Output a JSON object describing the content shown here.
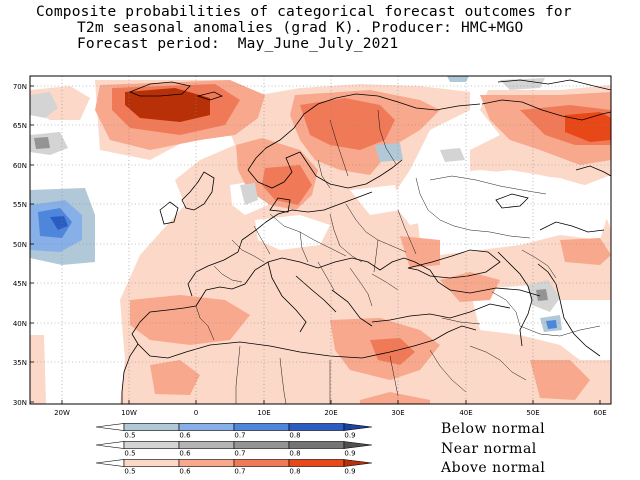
{
  "title": {
    "line1": "Composite probabilities of categorical forecast outcomes for",
    "line2": "T2m seasonal anomalies (grad K). Producer: HMC+MGO",
    "line3": "Forecast period:  May_June_July_2021"
  },
  "axes": {
    "lat_labels": [
      "70N",
      "65N",
      "60N",
      "55N",
      "50N",
      "45N",
      "40N",
      "35N",
      "30N"
    ],
    "lon_labels": [
      "20W",
      "10W",
      "0",
      "10E",
      "20E",
      "30E",
      "40E",
      "50E",
      "60E"
    ]
  },
  "legend": {
    "ticks": [
      "0.5",
      "0.6",
      "0.7",
      "0.8",
      "0.9"
    ],
    "categories": [
      {
        "label": "Below normal",
        "colors": [
          "#ffffff",
          "#b0c8d8",
          "#88b0e8",
          "#4e86dc",
          "#2a5cc4",
          "#1844a0"
        ]
      },
      {
        "label": "Near normal",
        "colors": [
          "#ffffff",
          "#d4d4d4",
          "#b4b4b4",
          "#949494",
          "#747474",
          "#505050"
        ]
      },
      {
        "label": "Above normal",
        "colors": [
          "#ffffff",
          "#fcd8c8",
          "#f8a88c",
          "#f07a58",
          "#e84818",
          "#b83008"
        ]
      }
    ]
  }
}
